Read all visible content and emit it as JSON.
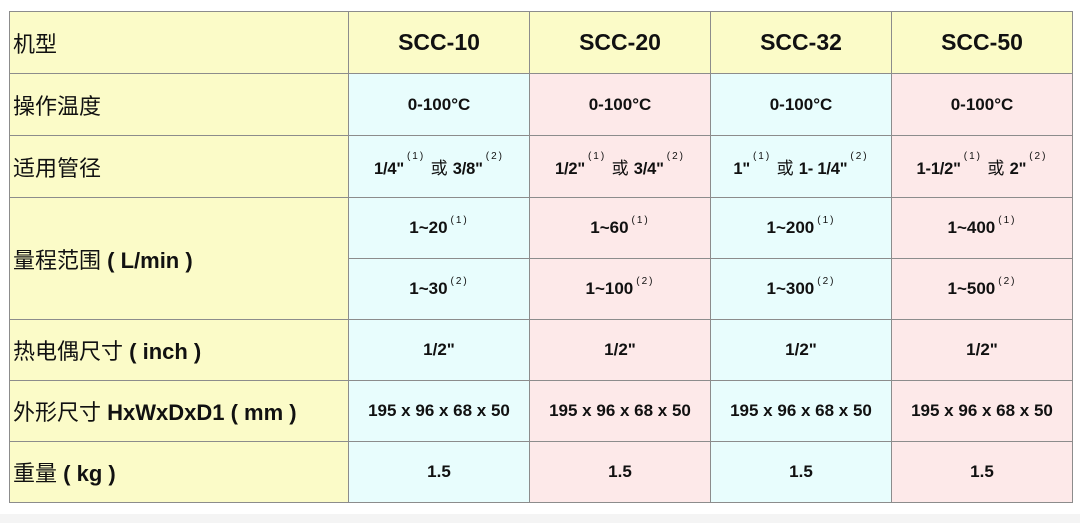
{
  "table": {
    "header": {
      "label": "机型",
      "models": [
        "SCC-10",
        "SCC-20",
        "SCC-32",
        "SCC-50"
      ]
    },
    "temperature": {
      "label": "操作温度",
      "values": [
        "0-100°C",
        "0-100°C",
        "0-100°C",
        "0-100°C"
      ]
    },
    "pipe": {
      "label": "适用管径",
      "or_text": "或",
      "values": [
        {
          "a": "1/4\"",
          "a_note": "(1)",
          "b": "3/8\"",
          "b_note": "(2)"
        },
        {
          "a": "1/2\"",
          "a_note": "(1)",
          "b": "3/4\"",
          "b_note": "(2)"
        },
        {
          "a": "1\"",
          "a_note": "(1)",
          "b": "1- 1/4\"",
          "b_note": "(2)"
        },
        {
          "a": "1-1/2\"",
          "a_note": "(1)",
          "b": "2\"",
          "b_note": "(2)"
        }
      ]
    },
    "range": {
      "label_cn": "量程范围",
      "label_unit": "( L/min )",
      "row1": [
        {
          "v": "1~20",
          "note": "(1)"
        },
        {
          "v": "1~60",
          "note": "(1)"
        },
        {
          "v": "1~200",
          "note": "(1)"
        },
        {
          "v": "1~400",
          "note": "(1)"
        }
      ],
      "row2": [
        {
          "v": "1~30",
          "note": "(2)"
        },
        {
          "v": "1~100",
          "note": "(2)"
        },
        {
          "v": "1~300",
          "note": "(2)"
        },
        {
          "v": "1~500",
          "note": "(2)"
        }
      ]
    },
    "thermocouple": {
      "label_cn": "热电偶尺寸",
      "label_unit": "( inch )",
      "values": [
        "1/2\"",
        "1/2\"",
        "1/2\"",
        "1/2\""
      ]
    },
    "dimensions": {
      "label_cn": "外形尺寸",
      "label_unit": "HxWxDxD1 ( mm )",
      "values": [
        "195 x 96 x 68 x 50",
        "195 x 96 x 68 x 50",
        "195 x 96 x 68 x 50",
        "195 x 96 x 68 x 50"
      ]
    },
    "weight": {
      "label_cn": "重量",
      "label_unit": "( kg )",
      "values": [
        "1.5",
        "1.5",
        "1.5",
        "1.5"
      ]
    }
  },
  "colors": {
    "label_bg": "#fbfbc8",
    "col_blue": "#e8fdfd",
    "col_pink": "#fde9e9",
    "border": "#8c8c8c"
  }
}
